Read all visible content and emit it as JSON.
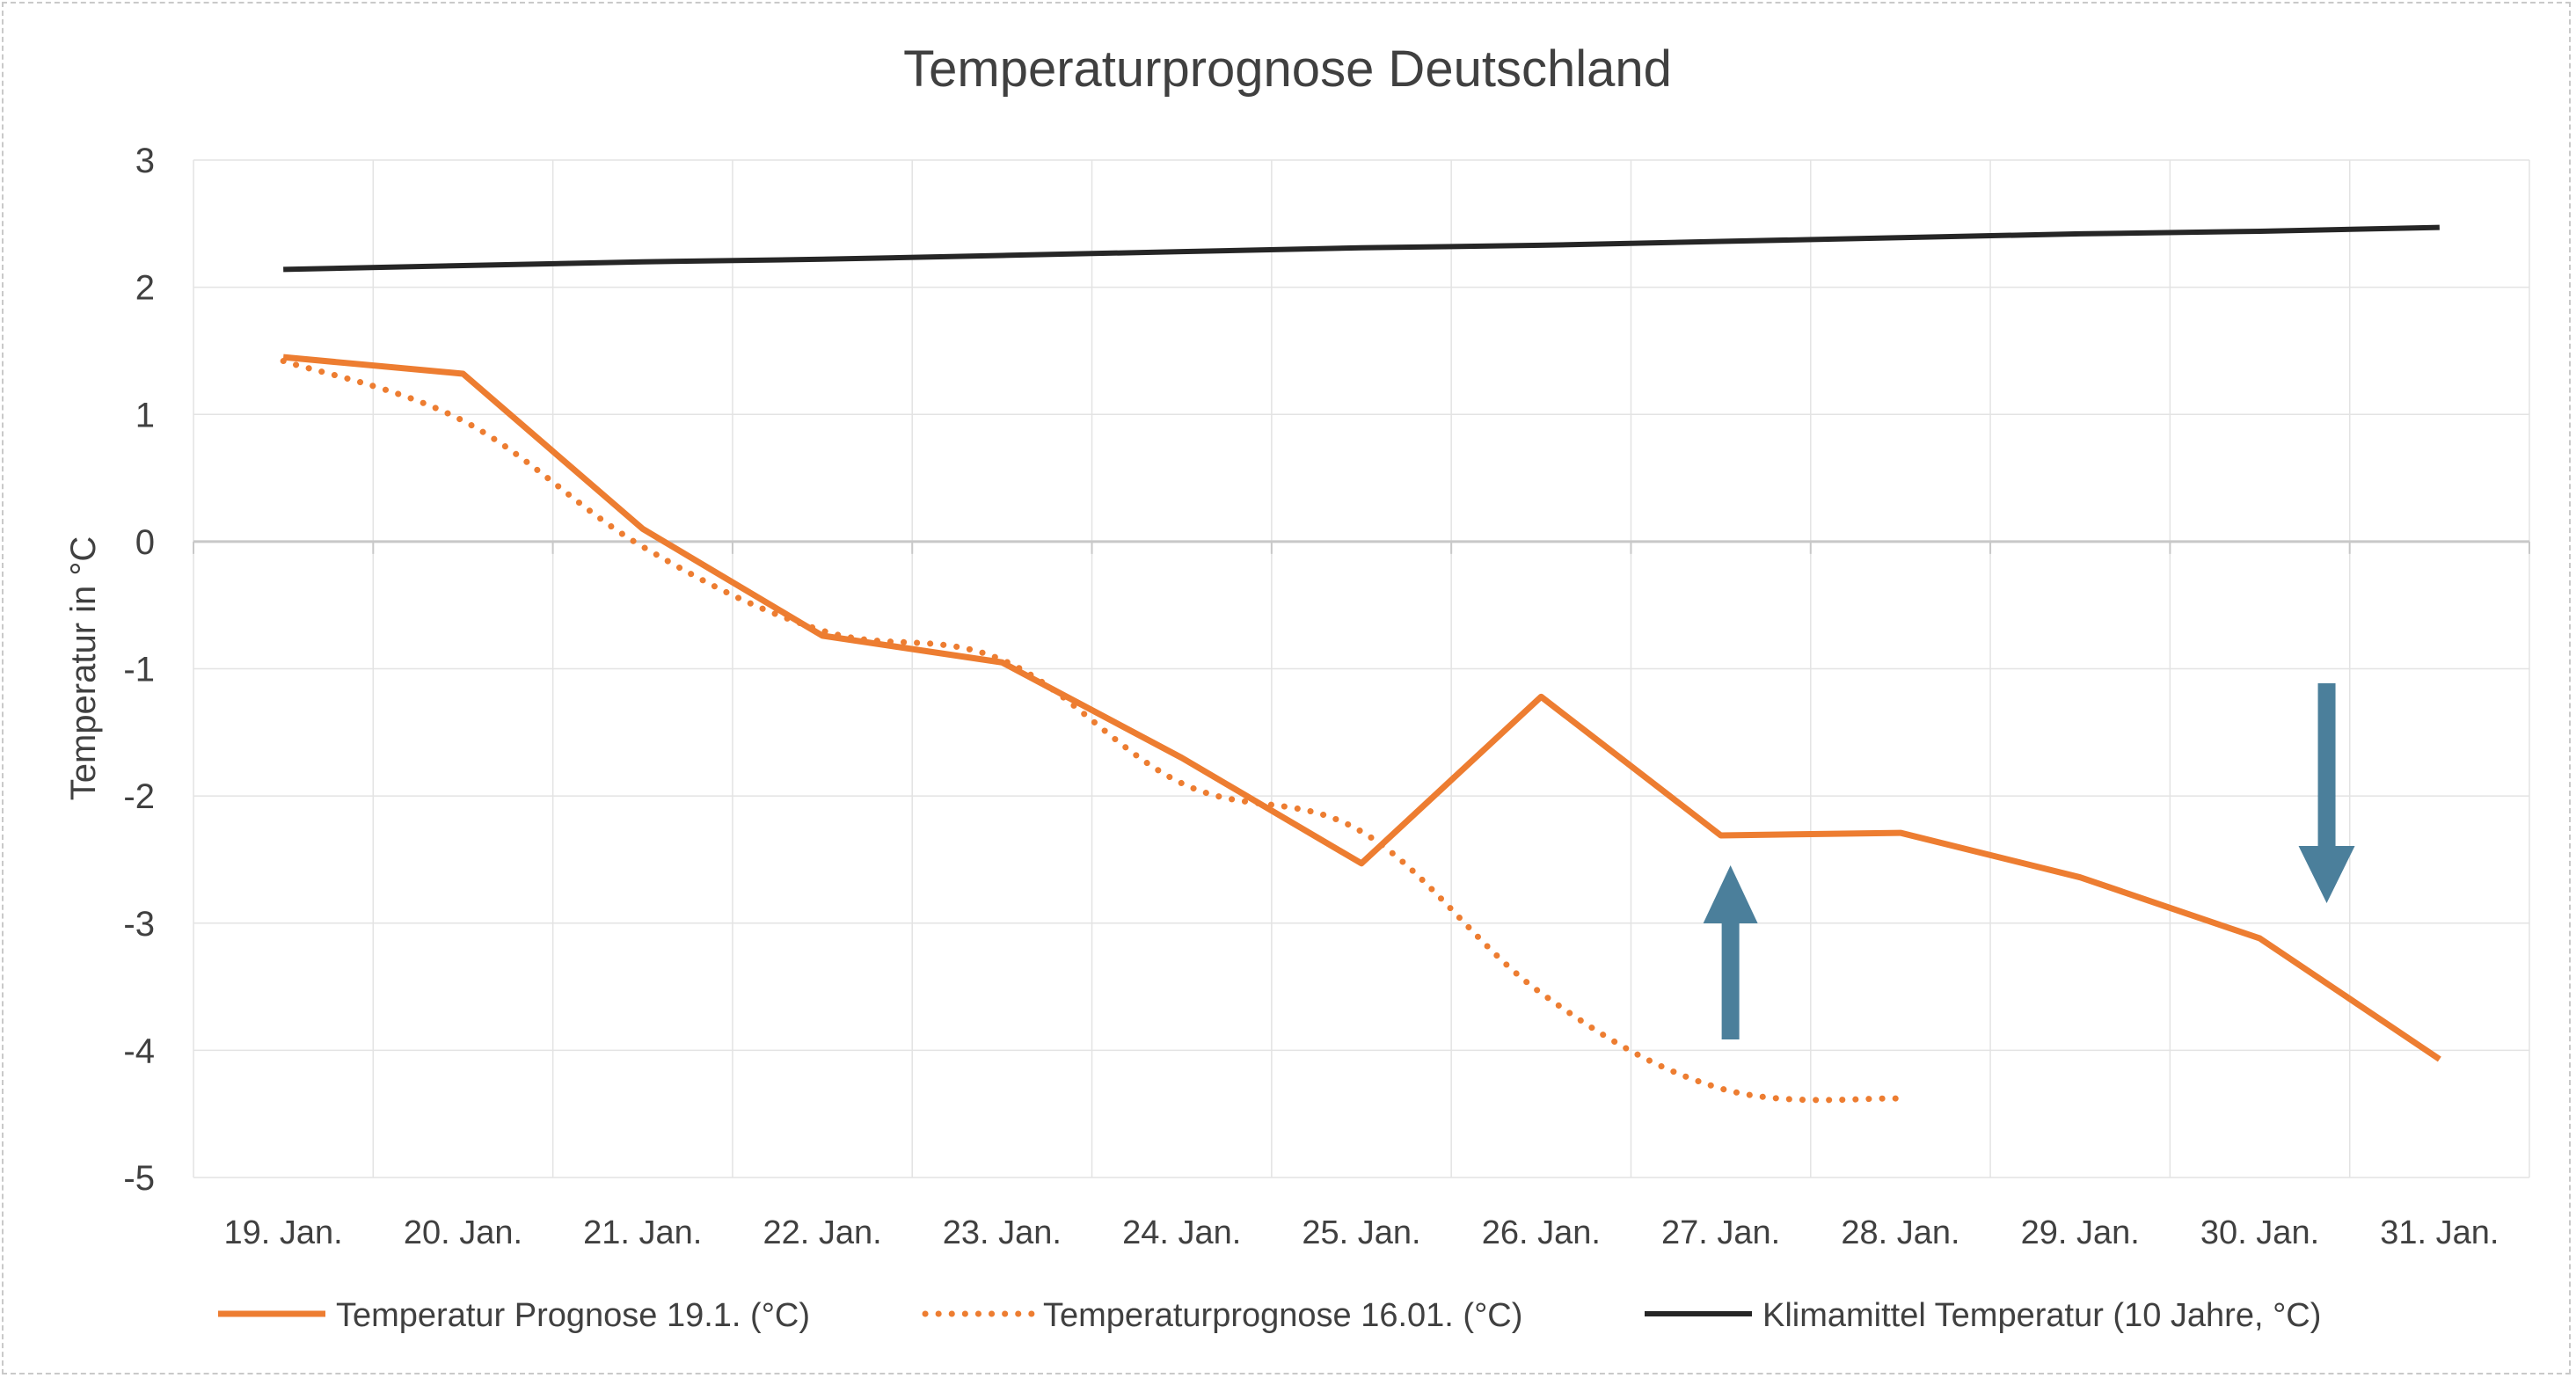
{
  "chart_data": {
    "type": "line",
    "title": "Temperaturprognose Deutschland",
    "ylabel": "Temperatur in °C",
    "xlabel": "",
    "categories": [
      "19. Jan.",
      "20. Jan.",
      "21. Jan.",
      "22. Jan.",
      "23. Jan.",
      "24. Jan.",
      "25. Jan.",
      "26. Jan.",
      "27. Jan.",
      "28. Jan.",
      "29. Jan.",
      "30. Jan.",
      "31. Jan."
    ],
    "ylim": [
      -5,
      3
    ],
    "yticks": [
      "3",
      "2",
      "1",
      "0",
      "-1",
      "-2",
      "-3",
      "-4",
      "-5"
    ],
    "grid": true,
    "legend_position": "bottom",
    "series": [
      {
        "name": "Temperatur Prognose 19.1. (°C)",
        "style": "solid-thick",
        "color": "#ED7D31",
        "values": [
          1.45,
          1.32,
          0.1,
          -0.74,
          -0.95,
          -1.7,
          -2.53,
          -1.22,
          -2.31,
          -2.29,
          -2.64,
          -3.12,
          -4.07
        ]
      },
      {
        "name": "Temperaturprognose 16.01. (°C)",
        "style": "dotted",
        "color": "#ED7D31",
        "values": [
          1.42,
          0.95,
          -0.04,
          -0.7,
          -0.93,
          -1.9,
          -2.28,
          -3.55,
          -4.3,
          -4.38,
          null,
          null,
          null
        ]
      },
      {
        "name": "Klimamittel Temperatur (10 Jahre, °C)",
        "style": "solid",
        "color": "#262626",
        "values": [
          2.14,
          2.17,
          2.2,
          2.22,
          2.25,
          2.28,
          2.31,
          2.33,
          2.36,
          2.39,
          2.42,
          2.44,
          2.47
        ]
      }
    ],
    "annotations": [
      {
        "type": "arrow-up",
        "color": "#4B7F9B",
        "near_category": "27. Jan."
      },
      {
        "type": "arrow-down",
        "color": "#4B7F9B",
        "near_category": "30. Jan."
      }
    ]
  }
}
